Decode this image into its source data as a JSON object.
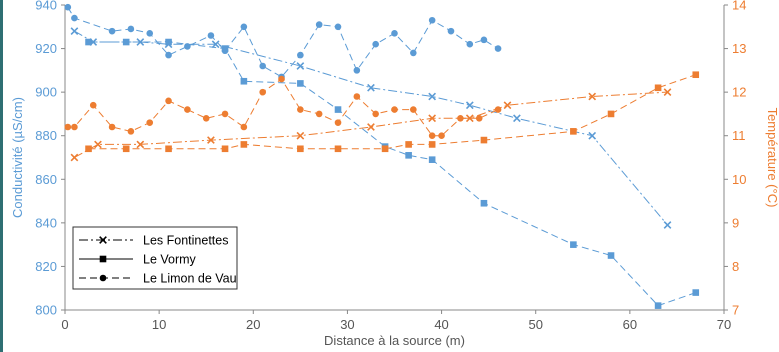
{
  "chart_data": {
    "type": "line",
    "xlabel": "Distance à la source (m)",
    "ylabel_left": "Conductivité (µS/cm)",
    "ylabel_right": "Température (°C)",
    "xlim": [
      0,
      70
    ],
    "ylim_left": [
      800,
      940
    ],
    "ylim_right": [
      7,
      14
    ],
    "x_ticks": [
      0,
      10,
      20,
      30,
      40,
      50,
      60,
      70
    ],
    "y_left_ticks": [
      800,
      820,
      840,
      860,
      880,
      900,
      920,
      940
    ],
    "y_right_ticks": [
      7,
      8,
      9,
      10,
      11,
      12,
      13,
      14
    ],
    "grid": false,
    "legend_position": "bottom-left",
    "colors": {
      "conductivity": "#5b9bd5",
      "temperature": "#ed7d31",
      "left_axis": "#5b9bd5",
      "right_axis": "#ed7d31"
    },
    "legend": [
      "Les Fontinettes",
      "Le Vormy",
      "Le Limon de Vau"
    ],
    "series": [
      {
        "name": "Les Fontinettes",
        "axis": "left",
        "marker": "x",
        "dash": "dashdot",
        "color": "#5b9bd5",
        "x": [
          1,
          3,
          8,
          11,
          16,
          25,
          32.5,
          39,
          43,
          48,
          56,
          64
        ],
        "y": [
          928,
          923,
          923,
          922,
          922,
          912,
          902,
          898,
          894,
          888,
          880,
          839
        ]
      },
      {
        "name": "Les Fontinettes",
        "axis": "right",
        "marker": "x",
        "dash": "dashdot",
        "color": "#ed7d31",
        "x": [
          1,
          3.5,
          8,
          15.5,
          25,
          32.5,
          39,
          43,
          47,
          56,
          64
        ],
        "y": [
          10.5,
          10.8,
          10.8,
          10.9,
          11,
          11.2,
          11.4,
          11.4,
          11.7,
          11.9,
          12
        ]
      },
      {
        "name": "Le Vormy",
        "axis": "left",
        "marker": "square",
        "dash": "dash",
        "color": "#5b9bd5",
        "x": [
          2.5,
          6.5,
          11,
          17,
          19,
          25,
          29,
          34,
          36.5,
          39,
          44.5,
          54,
          58,
          63,
          67
        ],
        "y": [
          923,
          923,
          923,
          920,
          905,
          904,
          892,
          875,
          871,
          869,
          849,
          830,
          825,
          802,
          808
        ]
      },
      {
        "name": "Le Vormy",
        "axis": "right",
        "marker": "square",
        "dash": "dash",
        "color": "#ed7d31",
        "x": [
          2.5,
          6.5,
          11,
          17,
          19,
          25,
          29,
          34,
          36.5,
          39,
          44.5,
          54,
          58,
          63,
          67
        ],
        "y": [
          10.7,
          10.7,
          10.7,
          10.7,
          10.8,
          10.7,
          10.7,
          10.7,
          10.8,
          10.8,
          10.9,
          11.1,
          11.5,
          12.1,
          12.4
        ]
      },
      {
        "name": "Le Limon de Vau",
        "axis": "left",
        "marker": "circle",
        "dash": "dash",
        "color": "#5b9bd5",
        "x": [
          0.3,
          1,
          5,
          7,
          9,
          11,
          13,
          15.5,
          17,
          19,
          21,
          23,
          25,
          27,
          29,
          31,
          33,
          35,
          37,
          39,
          41,
          43,
          44.5,
          46
        ],
        "y": [
          939,
          934,
          928,
          929,
          927,
          917,
          921,
          926,
          919,
          930,
          912,
          907,
          917,
          931,
          930,
          910,
          922,
          927,
          918,
          933,
          928,
          922,
          924,
          920
        ]
      },
      {
        "name": "Le Limon de Vau",
        "axis": "right",
        "marker": "circle",
        "dash": "dash",
        "color": "#ed7d31",
        "x": [
          0.3,
          1,
          3,
          5,
          7,
          9,
          11,
          13,
          15,
          17,
          19,
          21,
          23,
          25,
          27,
          29,
          31,
          33,
          35,
          37,
          39,
          40,
          42,
          44,
          46
        ],
        "y": [
          11.2,
          11.2,
          11.7,
          11.2,
          11.1,
          11.3,
          11.8,
          11.6,
          11.4,
          11.5,
          11.2,
          12,
          12.3,
          11.6,
          11.5,
          11.3,
          11.9,
          11.5,
          11.6,
          11.6,
          11,
          11,
          11.4,
          11.4,
          11.6
        ]
      }
    ]
  }
}
